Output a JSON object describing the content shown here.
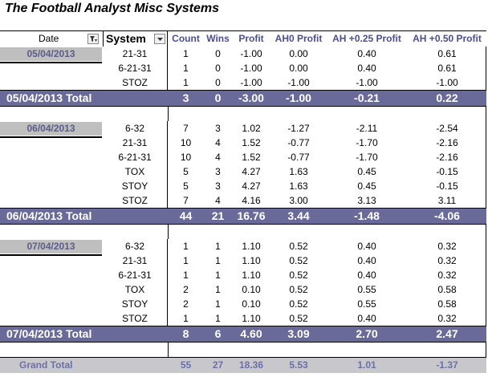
{
  "title": "The Football Analyst Misc Systems",
  "headers": {
    "date": "Date",
    "system": "System",
    "columns": [
      "Count",
      "Wins",
      "Profit",
      "AH0 Profit",
      "AH +0.25 Profit",
      "AH +0.50 Profit"
    ]
  },
  "groups": [
    {
      "date": "05/04/2013",
      "rows": [
        {
          "system": "21-31",
          "values": [
            "1",
            "0",
            "-1.00",
            "0.00",
            "0.40",
            "0.61"
          ]
        },
        {
          "system": "6-21-31",
          "values": [
            "1",
            "0",
            "-1.00",
            "0.00",
            "0.40",
            "0.61"
          ]
        },
        {
          "system": "STOZ",
          "values": [
            "1",
            "0",
            "-1.00",
            "-1.00",
            "-1.00",
            "-1.00"
          ]
        }
      ],
      "total_label": "05/04/2013 Total",
      "total": [
        "3",
        "0",
        "-3.00",
        "-1.00",
        "-0.21",
        "0.22"
      ]
    },
    {
      "date": "06/04/2013",
      "rows": [
        {
          "system": "6-32",
          "values": [
            "7",
            "3",
            "1.02",
            "-1.27",
            "-2.11",
            "-2.54"
          ]
        },
        {
          "system": "21-31",
          "values": [
            "10",
            "4",
            "1.52",
            "-0.77",
            "-1.70",
            "-2.16"
          ]
        },
        {
          "system": "6-21-31",
          "values": [
            "10",
            "4",
            "1.52",
            "-0.77",
            "-1.70",
            "-2.16"
          ]
        },
        {
          "system": "TOX",
          "values": [
            "5",
            "3",
            "4.27",
            "1.63",
            "0.45",
            "-0.15"
          ]
        },
        {
          "system": "STOY",
          "values": [
            "5",
            "3",
            "4.27",
            "1.63",
            "0.45",
            "-0.15"
          ]
        },
        {
          "system": "STOZ",
          "values": [
            "7",
            "4",
            "4.16",
            "3.00",
            "3.13",
            "3.11"
          ]
        }
      ],
      "total_label": "06/04/2013 Total",
      "total": [
        "44",
        "21",
        "16.76",
        "3.44",
        "-1.48",
        "-4.06"
      ]
    },
    {
      "date": "07/04/2013",
      "rows": [
        {
          "system": "6-32",
          "values": [
            "1",
            "1",
            "1.10",
            "0.52",
            "0.40",
            "0.32"
          ]
        },
        {
          "system": "21-31",
          "values": [
            "1",
            "1",
            "1.10",
            "0.52",
            "0.40",
            "0.32"
          ]
        },
        {
          "system": "6-21-31",
          "values": [
            "1",
            "1",
            "1.10",
            "0.52",
            "0.40",
            "0.32"
          ]
        },
        {
          "system": "TOX",
          "values": [
            "2",
            "1",
            "0.10",
            "0.52",
            "0.55",
            "0.58"
          ]
        },
        {
          "system": "STOY",
          "values": [
            "2",
            "1",
            "0.10",
            "0.52",
            "0.55",
            "0.58"
          ]
        },
        {
          "system": "STOZ",
          "values": [
            "1",
            "1",
            "1.10",
            "0.52",
            "0.40",
            "0.32"
          ]
        }
      ],
      "total_label": "07/04/2013 Total",
      "total": [
        "8",
        "6",
        "4.60",
        "3.09",
        "2.70",
        "2.47"
      ]
    }
  ],
  "grand_total": {
    "label": "Grand Total",
    "values": [
      "55",
      "27",
      "18.36",
      "5.53",
      "1.01",
      "-1.37"
    ]
  },
  "colors": {
    "total_bar": "#6a6a9a",
    "header_text": "#4a4e8e",
    "date_cell": "#bfbfbf"
  },
  "icons": {
    "date_filter": "filter-icon",
    "system_dropdown": "chevron-down-icon"
  }
}
